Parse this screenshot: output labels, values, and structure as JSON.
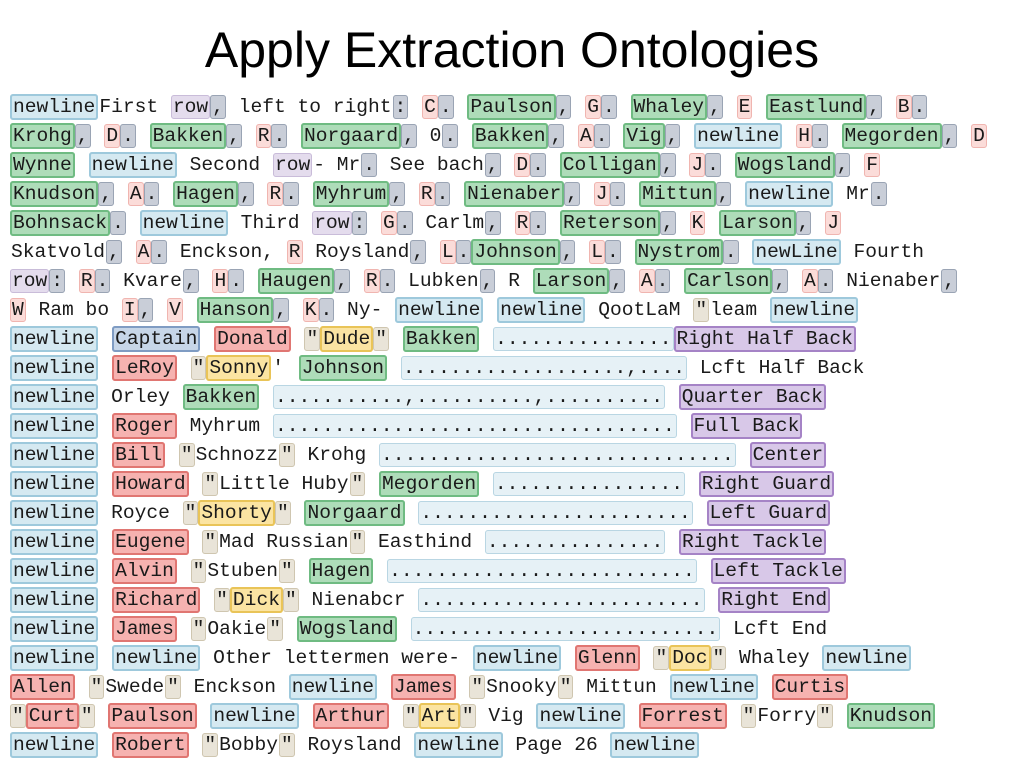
{
  "slide": {
    "title": "Apply Extraction Ontologies"
  },
  "lines": [
    [
      [
        "newline",
        "n"
      ],
      [
        "First ",
        "p"
      ],
      [
        "row",
        "r"
      ],
      [
        ",",
        "s"
      ],
      [
        " left to right",
        "p"
      ],
      [
        ":",
        "s"
      ],
      [
        " ",
        "p"
      ],
      [
        "C",
        "i"
      ],
      [
        ".",
        "s"
      ],
      [
        " ",
        "p"
      ],
      [
        "Paulson",
        "g"
      ],
      [
        ",",
        "s"
      ],
      [
        " ",
        "p"
      ],
      [
        "G",
        "i"
      ],
      [
        ".",
        "s"
      ],
      [
        " ",
        "p"
      ],
      [
        "Whaley",
        "g"
      ],
      [
        ",",
        "s"
      ],
      [
        " ",
        "p"
      ],
      [
        "E",
        "i"
      ],
      [
        " ",
        "p"
      ],
      [
        "Eastlund",
        "g"
      ],
      [
        ",",
        "s"
      ],
      [
        " ",
        "p"
      ],
      [
        "B",
        "i"
      ],
      [
        ".",
        "s"
      ]
    ],
    [
      [
        "Krohg",
        "g"
      ],
      [
        ",",
        "s"
      ],
      [
        " ",
        "p"
      ],
      [
        "D",
        "i"
      ],
      [
        ".",
        "s"
      ],
      [
        " ",
        "p"
      ],
      [
        "Bakken",
        "g"
      ],
      [
        ",",
        "s"
      ],
      [
        " ",
        "p"
      ],
      [
        "R",
        "i"
      ],
      [
        ".",
        "s"
      ],
      [
        " ",
        "p"
      ],
      [
        "Norgaard",
        "g"
      ],
      [
        ",",
        "s"
      ],
      [
        " 0",
        "p"
      ],
      [
        ".",
        "s"
      ],
      [
        " ",
        "p"
      ],
      [
        "Bakken",
        "g"
      ],
      [
        ",",
        "s"
      ],
      [
        " ",
        "p"
      ],
      [
        "A",
        "i"
      ],
      [
        ".",
        "s"
      ],
      [
        " ",
        "p"
      ],
      [
        "Vig",
        "g"
      ],
      [
        ",",
        "s"
      ],
      [
        " ",
        "p"
      ],
      [
        "newline",
        "n"
      ],
      [
        " ",
        "p"
      ],
      [
        "H",
        "i"
      ],
      [
        ".",
        "s"
      ],
      [
        " ",
        "p"
      ],
      [
        "Megorden",
        "g"
      ],
      [
        ",",
        "s"
      ],
      [
        " ",
        "p"
      ],
      [
        "D",
        "i"
      ]
    ],
    [
      [
        "Wynne",
        "g"
      ],
      [
        " ",
        "p"
      ],
      [
        "newline",
        "n"
      ],
      [
        " Second ",
        "p"
      ],
      [
        "row",
        "r"
      ],
      [
        "- Mr",
        "p"
      ],
      [
        ".",
        "s"
      ],
      [
        " See bach",
        "p"
      ],
      [
        ",",
        "s"
      ],
      [
        " ",
        "p"
      ],
      [
        "D",
        "i"
      ],
      [
        ".",
        "s"
      ],
      [
        " ",
        "p"
      ],
      [
        "Colligan",
        "g"
      ],
      [
        ",",
        "s"
      ],
      [
        " ",
        "p"
      ],
      [
        "J",
        "i"
      ],
      [
        ".",
        "s"
      ],
      [
        " ",
        "p"
      ],
      [
        "Wogsland",
        "g"
      ],
      [
        ",",
        "s"
      ],
      [
        " ",
        "p"
      ],
      [
        "F",
        "i"
      ]
    ],
    [
      [
        "Knudson",
        "g"
      ],
      [
        ",",
        "s"
      ],
      [
        " ",
        "p"
      ],
      [
        "A",
        "i"
      ],
      [
        ".",
        "s"
      ],
      [
        " ",
        "p"
      ],
      [
        "Hagen",
        "g"
      ],
      [
        ",",
        "s"
      ],
      [
        " ",
        "p"
      ],
      [
        "R",
        "i"
      ],
      [
        ".",
        "s"
      ],
      [
        " ",
        "p"
      ],
      [
        "Myhrum",
        "g"
      ],
      [
        ",",
        "s"
      ],
      [
        " ",
        "p"
      ],
      [
        "R",
        "i"
      ],
      [
        ".",
        "s"
      ],
      [
        " ",
        "p"
      ],
      [
        "Nienaber",
        "g"
      ],
      [
        ",",
        "s"
      ],
      [
        " ",
        "p"
      ],
      [
        "J",
        "i"
      ],
      [
        ".",
        "s"
      ],
      [
        " ",
        "p"
      ],
      [
        "Mittun",
        "g"
      ],
      [
        ",",
        "s"
      ],
      [
        " ",
        "p"
      ],
      [
        "newline",
        "n"
      ],
      [
        " Mr",
        "p"
      ],
      [
        ".",
        "s"
      ]
    ],
    [
      [
        "Bohnsack",
        "g"
      ],
      [
        ".",
        "s"
      ],
      [
        " ",
        "p"
      ],
      [
        "newline",
        "n"
      ],
      [
        " Third ",
        "p"
      ],
      [
        "row",
        "r"
      ],
      [
        ":",
        "s"
      ],
      [
        " ",
        "p"
      ],
      [
        "G",
        "i"
      ],
      [
        ".",
        "s"
      ],
      [
        " Carlm",
        "p"
      ],
      [
        ",",
        "s"
      ],
      [
        " ",
        "p"
      ],
      [
        "R",
        "i"
      ],
      [
        ".",
        "s"
      ],
      [
        " ",
        "p"
      ],
      [
        "Reterson",
        "g"
      ],
      [
        ",",
        "s"
      ],
      [
        " ",
        "p"
      ],
      [
        "K",
        "i"
      ],
      [
        " ",
        "p"
      ],
      [
        "Larson",
        "g"
      ],
      [
        ",",
        "s"
      ],
      [
        " ",
        "p"
      ],
      [
        "J",
        "i"
      ]
    ],
    [
      [
        "Skatvold",
        "p"
      ],
      [
        ",",
        "s"
      ],
      [
        " ",
        "p"
      ],
      [
        "A",
        "i"
      ],
      [
        ".",
        "s"
      ],
      [
        " Enckson, ",
        "p"
      ],
      [
        "R",
        "i"
      ],
      [
        " Roysland",
        "p"
      ],
      [
        ",",
        "s"
      ],
      [
        " ",
        "p"
      ],
      [
        "L",
        "i"
      ],
      [
        ".",
        "s"
      ],
      [
        "Johnson",
        "g"
      ],
      [
        ",",
        "s"
      ],
      [
        " ",
        "p"
      ],
      [
        "L",
        "i"
      ],
      [
        ".",
        "s"
      ],
      [
        " ",
        "p"
      ],
      [
        "Nystrom",
        "g"
      ],
      [
        ".",
        "s"
      ],
      [
        " ",
        "p"
      ],
      [
        "newLine",
        "n"
      ],
      [
        " Fourth",
        "p"
      ]
    ],
    [
      [
        "row",
        "r"
      ],
      [
        ":",
        "s"
      ],
      [
        " ",
        "p"
      ],
      [
        "R",
        "i"
      ],
      [
        ".",
        "s"
      ],
      [
        " Kvare",
        "p"
      ],
      [
        ",",
        "s"
      ],
      [
        " ",
        "p"
      ],
      [
        "H",
        "i"
      ],
      [
        ".",
        "s"
      ],
      [
        " ",
        "p"
      ],
      [
        "Haugen",
        "g"
      ],
      [
        ",",
        "s"
      ],
      [
        " ",
        "p"
      ],
      [
        "R",
        "i"
      ],
      [
        ".",
        "s"
      ],
      [
        " Lubken",
        "p"
      ],
      [
        ",",
        "s"
      ],
      [
        " R ",
        "p"
      ],
      [
        "Larson",
        "g"
      ],
      [
        ",",
        "s"
      ],
      [
        " ",
        "p"
      ],
      [
        "A",
        "i"
      ],
      [
        ".",
        "s"
      ],
      [
        " ",
        "p"
      ],
      [
        "Carlson",
        "g"
      ],
      [
        ",",
        "s"
      ],
      [
        " ",
        "p"
      ],
      [
        "A",
        "i"
      ],
      [
        ".",
        "s"
      ],
      [
        " Nienaber",
        "p"
      ],
      [
        ",",
        "s"
      ]
    ],
    [
      [
        "W",
        "i"
      ],
      [
        " Ram bo ",
        "p"
      ],
      [
        "I",
        "i"
      ],
      [
        ",",
        "s"
      ],
      [
        " ",
        "p"
      ],
      [
        "V",
        "i"
      ],
      [
        " ",
        "p"
      ],
      [
        "Hanson",
        "g"
      ],
      [
        ",",
        "s"
      ],
      [
        " ",
        "p"
      ],
      [
        "K",
        "i"
      ],
      [
        ".",
        "s"
      ],
      [
        " Ny- ",
        "p"
      ],
      [
        "newline",
        "n"
      ],
      [
        " ",
        "p"
      ],
      [
        "newline",
        "n"
      ],
      [
        " QootLaM ",
        "p"
      ],
      [
        "\"",
        "q"
      ],
      [
        "leam ",
        "p"
      ],
      [
        "newline",
        "n"
      ]
    ],
    [
      [
        "newline",
        "n"
      ],
      [
        " ",
        "p"
      ],
      [
        "Captain",
        "t"
      ],
      [
        " ",
        "p"
      ],
      [
        "Donald",
        "f"
      ],
      [
        " ",
        "p"
      ],
      [
        "\"",
        "q"
      ],
      [
        "Dude",
        "k"
      ],
      [
        "\"",
        "q"
      ],
      [
        " ",
        "p"
      ],
      [
        "Bakken",
        "g"
      ],
      [
        " ",
        "p"
      ],
      [
        "...............",
        "d"
      ],
      [
        "Right Half Back",
        "o"
      ]
    ],
    [
      [
        "newline",
        "n"
      ],
      [
        " ",
        "p"
      ],
      [
        "LeRoy",
        "f"
      ],
      [
        " ",
        "p"
      ],
      [
        "\"",
        "q"
      ],
      [
        "Sonny",
        "k"
      ],
      [
        "'",
        "p"
      ],
      [
        " ",
        "p"
      ],
      [
        "Johnson",
        "g"
      ],
      [
        " ",
        "p"
      ],
      [
        "...................,....",
        "d"
      ],
      [
        " Lcft Half Back",
        "p"
      ]
    ],
    [
      [
        "newline",
        "n"
      ],
      [
        " Orley ",
        "p"
      ],
      [
        "Bakken",
        "g"
      ],
      [
        " ",
        "p"
      ],
      [
        "...........,..........,..........",
        "d"
      ],
      [
        " ",
        "p"
      ],
      [
        "Quarter Back",
        "o"
      ]
    ],
    [
      [
        "newline",
        "n"
      ],
      [
        " ",
        "p"
      ],
      [
        "Roger",
        "f"
      ],
      [
        " Myhrum ",
        "p"
      ],
      [
        "..................................",
        "d"
      ],
      [
        " ",
        "p"
      ],
      [
        "Full Back",
        "o"
      ]
    ],
    [
      [
        "newline",
        "n"
      ],
      [
        " ",
        "p"
      ],
      [
        "Bill",
        "f"
      ],
      [
        " ",
        "p"
      ],
      [
        "\"",
        "q"
      ],
      [
        "Schnozz",
        "p"
      ],
      [
        "\"",
        "q"
      ],
      [
        " Krohg ",
        "p"
      ],
      [
        "..............................",
        "d"
      ],
      [
        " ",
        "p"
      ],
      [
        "Center",
        "o"
      ]
    ],
    [
      [
        "newline",
        "n"
      ],
      [
        " ",
        "p"
      ],
      [
        "Howard",
        "f"
      ],
      [
        " ",
        "p"
      ],
      [
        "\"",
        "q"
      ],
      [
        "Little Huby",
        "p"
      ],
      [
        "\"",
        "q"
      ],
      [
        " ",
        "p"
      ],
      [
        "Megorden",
        "g"
      ],
      [
        " ",
        "p"
      ],
      [
        "................",
        "d"
      ],
      [
        " ",
        "p"
      ],
      [
        "Right Guard",
        "o"
      ]
    ],
    [
      [
        "newline",
        "n"
      ],
      [
        " Royce ",
        "p"
      ],
      [
        "\"",
        "q"
      ],
      [
        "Shorty",
        "k"
      ],
      [
        "\"",
        "q"
      ],
      [
        " ",
        "p"
      ],
      [
        "Norgaard",
        "g"
      ],
      [
        " ",
        "p"
      ],
      [
        ".......................",
        "d"
      ],
      [
        " ",
        "p"
      ],
      [
        "Left Guard",
        "o"
      ]
    ],
    [
      [
        "newline",
        "n"
      ],
      [
        " ",
        "p"
      ],
      [
        "Eugene",
        "f"
      ],
      [
        " ",
        "p"
      ],
      [
        "\"",
        "q"
      ],
      [
        "Mad Russian",
        "p"
      ],
      [
        "\"",
        "q"
      ],
      [
        " Easthind ",
        "p"
      ],
      [
        "...............",
        "d"
      ],
      [
        " ",
        "p"
      ],
      [
        "Right Tackle",
        "o"
      ]
    ],
    [
      [
        "newline",
        "n"
      ],
      [
        " ",
        "p"
      ],
      [
        "Alvin",
        "f"
      ],
      [
        " ",
        "p"
      ],
      [
        "\"",
        "q"
      ],
      [
        "Stuben",
        "p"
      ],
      [
        "\"",
        "q"
      ],
      [
        " ",
        "p"
      ],
      [
        "Hagen",
        "g"
      ],
      [
        " ",
        "p"
      ],
      [
        "..........................",
        "d"
      ],
      [
        " ",
        "p"
      ],
      [
        "Left Tackle",
        "o"
      ]
    ],
    [
      [
        "newline",
        "n"
      ],
      [
        " ",
        "p"
      ],
      [
        "Richard",
        "f"
      ],
      [
        " ",
        "p"
      ],
      [
        "\"",
        "q"
      ],
      [
        "Dick",
        "k"
      ],
      [
        "\"",
        "q"
      ],
      [
        " Nienabcr ",
        "p"
      ],
      [
        "........................",
        "d"
      ],
      [
        " ",
        "p"
      ],
      [
        "Right End",
        "o"
      ]
    ],
    [
      [
        "newline",
        "n"
      ],
      [
        " ",
        "p"
      ],
      [
        "James",
        "f"
      ],
      [
        " ",
        "p"
      ],
      [
        "\"",
        "q"
      ],
      [
        "Oakie",
        "p"
      ],
      [
        "\"",
        "q"
      ],
      [
        " ",
        "p"
      ],
      [
        "Wogsland",
        "g"
      ],
      [
        " ",
        "p"
      ],
      [
        "..........................",
        "d"
      ],
      [
        " Lcft End",
        "p"
      ]
    ],
    [
      [
        "newline",
        "n"
      ],
      [
        " ",
        "p"
      ],
      [
        "newline",
        "n"
      ],
      [
        " Other lettermen were- ",
        "p"
      ],
      [
        "newline",
        "n"
      ],
      [
        " ",
        "p"
      ],
      [
        "Glenn",
        "f"
      ],
      [
        " ",
        "p"
      ],
      [
        "\"",
        "q"
      ],
      [
        "Doc",
        "k"
      ],
      [
        "\"",
        "q"
      ],
      [
        " Whaley ",
        "p"
      ],
      [
        "newline",
        "n"
      ]
    ],
    [
      [
        "Allen",
        "f"
      ],
      [
        " ",
        "p"
      ],
      [
        "\"",
        "q"
      ],
      [
        "Swede",
        "p"
      ],
      [
        "\"",
        "q"
      ],
      [
        " Enckson ",
        "p"
      ],
      [
        "newline",
        "n"
      ],
      [
        " ",
        "p"
      ],
      [
        "James",
        "f"
      ],
      [
        " ",
        "p"
      ],
      [
        "\"",
        "q"
      ],
      [
        "Snooky",
        "p"
      ],
      [
        "\"",
        "q"
      ],
      [
        " Mittun ",
        "p"
      ],
      [
        "newline",
        "n"
      ],
      [
        " ",
        "p"
      ],
      [
        "Curtis",
        "f"
      ]
    ],
    [
      [
        "\"",
        "q"
      ],
      [
        "Curt",
        "f"
      ],
      [
        "\"",
        "q"
      ],
      [
        " ",
        "p"
      ],
      [
        "Paulson",
        "f"
      ],
      [
        " ",
        "p"
      ],
      [
        "newline",
        "n"
      ],
      [
        " ",
        "p"
      ],
      [
        "Arthur",
        "f"
      ],
      [
        " ",
        "p"
      ],
      [
        "\"",
        "q"
      ],
      [
        "Art",
        "k"
      ],
      [
        "\"",
        "q"
      ],
      [
        " Vig ",
        "p"
      ],
      [
        "newline",
        "n"
      ],
      [
        " ",
        "p"
      ],
      [
        "Forrest",
        "f"
      ],
      [
        " ",
        "p"
      ],
      [
        "\"",
        "q"
      ],
      [
        "Forry",
        "p"
      ],
      [
        "\"",
        "q"
      ],
      [
        " ",
        "p"
      ],
      [
        "Knudson",
        "g"
      ]
    ],
    [
      [
        "newline",
        "n"
      ],
      [
        " ",
        "p"
      ],
      [
        "Robert",
        "f"
      ],
      [
        " ",
        "p"
      ],
      [
        "\"",
        "q"
      ],
      [
        "Bobby",
        "p"
      ],
      [
        "\"",
        "q"
      ],
      [
        " Roysland ",
        "p"
      ],
      [
        "newline",
        "n"
      ],
      [
        " Page 26 ",
        "p"
      ],
      [
        "newline",
        "n"
      ]
    ]
  ],
  "token_kinds": {
    "n": {
      "label": "newline",
      "color": "#d5e9f1"
    },
    "g": {
      "label": "surname",
      "color": "#aedcb9"
    },
    "f": {
      "label": "given-name",
      "color": "#f6b2b0"
    },
    "k": {
      "label": "nickname",
      "color": "#fbe4a2"
    },
    "o": {
      "label": "position",
      "color": "#d8c8e8"
    },
    "i": {
      "label": "initial",
      "color": "#fbdcd9"
    },
    "r": {
      "label": "row",
      "color": "#e4dced"
    },
    "s": {
      "label": "separator",
      "color": "#c9ced8"
    },
    "q": {
      "label": "quote",
      "color": "#e9e4d8"
    },
    "d": {
      "label": "leader-dots",
      "color": "#e6f1f6"
    },
    "t": {
      "label": "title",
      "color": "#c7d6e8"
    },
    "p": {
      "label": "plain",
      "color": "#ffffff"
    }
  }
}
